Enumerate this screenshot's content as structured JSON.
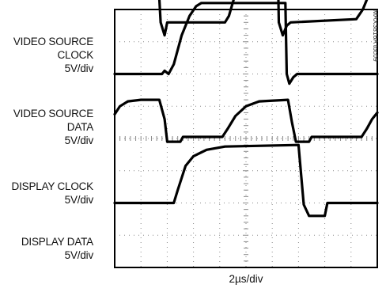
{
  "chart_data": {
    "type": "line",
    "title": "",
    "figure_id": "MAX3816A toc09",
    "xlabel": "2µs/div",
    "x_divisions": 10,
    "y_divisions": 8,
    "grid": true,
    "series": [
      {
        "name": "VIDEO SOURCE CLOCK",
        "label_lines": [
          "VIDEO SOURCE",
          "CLOCK",
          "5V/div"
        ],
        "x": [
          0,
          1.5,
          1.6,
          1.75,
          1.9,
          2.0,
          4.2,
          4.35,
          4.6,
          4.85,
          5.05,
          5.2,
          5.4,
          6.2,
          6.25,
          6.4,
          6.55,
          6.7,
          9.2,
          9.45,
          9.7,
          10
        ],
        "y": [
          5.8,
          5.8,
          5.8,
          3.6,
          3.2,
          3.6,
          3.6,
          3.8,
          4.5,
          5.3,
          5.7,
          5.85,
          5.85,
          5.85,
          3.6,
          3.2,
          3.5,
          3.6,
          3.7,
          4.0,
          4.5,
          5.0
        ]
      },
      {
        "name": "VIDEO SOURCE DATA",
        "label_lines": [
          "VIDEO SOURCE",
          "DATA",
          "5V/div"
        ],
        "x": [
          0,
          1.8,
          1.9,
          2.05,
          2.25,
          2.55,
          2.85,
          3.1,
          3.3,
          6.5,
          6.55,
          6.65,
          6.8,
          6.95,
          10
        ],
        "y": [
          2.0,
          2.0,
          2.1,
          2.0,
          2.3,
          3.2,
          3.8,
          4.1,
          4.2,
          4.2,
          2.0,
          1.7,
          1.9,
          2.0,
          2.0
        ]
      },
      {
        "name": "DISPLAY CLOCK",
        "label_lines": [
          "DISPLAY CLOCK",
          "5V/div"
        ],
        "x": [
          0,
          0.2,
          0.5,
          1.0,
          1.7,
          1.9,
          2.0,
          2.5,
          2.6,
          4.1,
          4.3,
          4.6,
          5.0,
          5.5,
          6.6,
          6.75,
          6.9,
          7.4,
          7.5,
          9.4,
          9.6,
          9.8,
          10
        ],
        "y": [
          0.75,
          1.0,
          1.15,
          1.2,
          1.2,
          0.6,
          -0.1,
          -0.1,
          0.05,
          0.05,
          0.3,
          0.7,
          1.0,
          1.15,
          1.2,
          0.5,
          -0.1,
          -0.1,
          0.05,
          0.05,
          0.3,
          0.6,
          0.8
        ]
      },
      {
        "name": "DISPLAY DATA",
        "label_lines": [
          "DISPLAY DATA",
          "5V/div"
        ],
        "x": [
          0,
          2.25,
          2.4,
          2.7,
          3.0,
          3.5,
          4.2,
          7.0,
          7.2,
          7.4,
          8.0,
          8.1,
          10
        ],
        "y": [
          -2.0,
          -2.0,
          -1.6,
          -0.85,
          -0.55,
          -0.35,
          -0.25,
          -0.2,
          -2.05,
          -2.4,
          -2.4,
          -2.0,
          -2.0
        ]
      }
    ]
  },
  "colors": {
    "trace": "#000000",
    "frame": "#000000",
    "grid": "#8a8a8a"
  }
}
